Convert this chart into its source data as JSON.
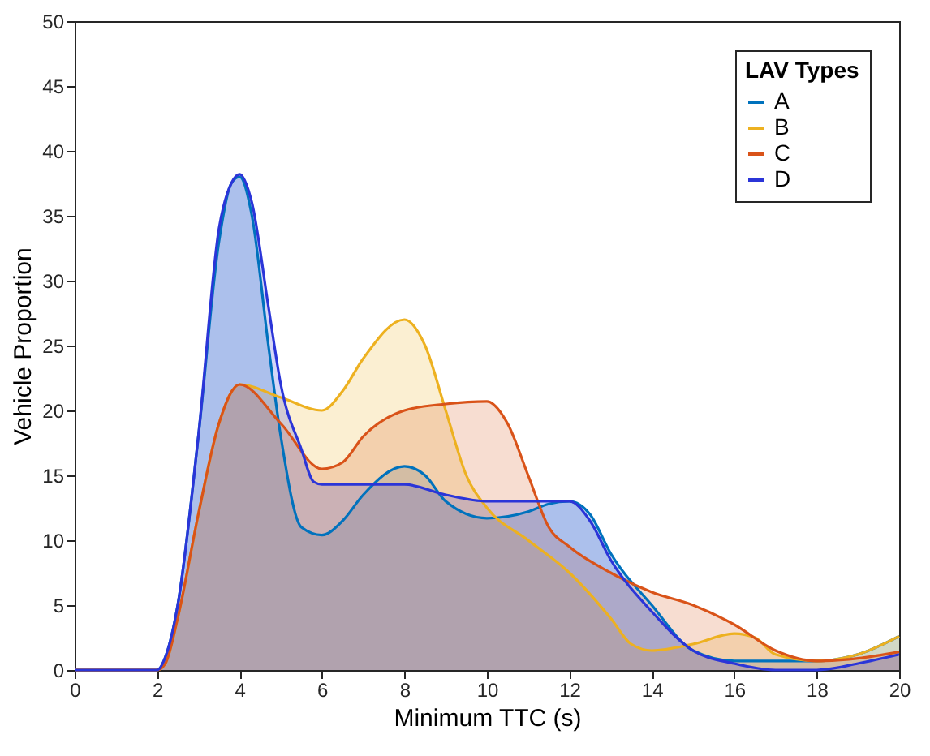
{
  "chart_data": {
    "type": "area",
    "xlabel": "Minimum TTC (s)",
    "ylabel": "Vehicle Proportion",
    "legend_title": "LAV Types",
    "legend": "top right",
    "grid": false,
    "xlim": [
      0,
      20
    ],
    "ylim": [
      0,
      50
    ],
    "xticks": [
      0,
      2,
      4,
      6,
      8,
      10,
      12,
      14,
      16,
      18,
      20
    ],
    "yticks": [
      0,
      5,
      10,
      15,
      20,
      25,
      30,
      35,
      40,
      45,
      50
    ],
    "series": [
      {
        "name": "A",
        "color": "#0072bd",
        "x": [
          0,
          2,
          2.2,
          2.5,
          3,
          3.5,
          3.8,
          4,
          4.3,
          4.7,
          5,
          5.5,
          6,
          6.5,
          7,
          8,
          8.5,
          9,
          10,
          11,
          11.5,
          12,
          12.5,
          13,
          14,
          15,
          16,
          17,
          18,
          19,
          20
        ],
        "values": [
          0,
          0,
          1,
          5,
          18,
          33,
          37.5,
          38,
          35,
          25,
          18,
          11,
          10.4,
          11.5,
          13.5,
          15.7,
          15,
          13,
          11.7,
          12.2,
          12.8,
          13,
          12,
          9,
          5,
          1.5,
          0.7,
          0.7,
          0.7,
          1.2,
          2.6
        ]
      },
      {
        "name": "B",
        "color": "#edb120",
        "x": [
          0,
          2,
          2.2,
          2.5,
          3,
          3.5,
          4,
          5,
          6,
          6.5,
          7,
          8,
          8.5,
          9,
          9.5,
          10,
          11,
          12,
          13,
          13.5,
          14,
          15,
          16,
          16.5,
          17,
          18,
          19,
          20
        ],
        "values": [
          0,
          0,
          0.5,
          4,
          12,
          19,
          22,
          21,
          20,
          21.5,
          24,
          27,
          25,
          20,
          15,
          12.5,
          10,
          7.5,
          4,
          2,
          1.5,
          2,
          2.8,
          2.5,
          1.2,
          0.7,
          1.2,
          2.6
        ]
      },
      {
        "name": "C",
        "color": "#d95319",
        "x": [
          0,
          2,
          2.2,
          2.5,
          3,
          3.5,
          4,
          5,
          6,
          6.5,
          7,
          8,
          9,
          10,
          10.5,
          11,
          11.5,
          12,
          13,
          14,
          15,
          16,
          17,
          18,
          19,
          20
        ],
        "values": [
          0,
          0,
          0.5,
          4,
          12,
          19,
          22,
          19,
          15.5,
          16,
          18,
          20,
          20.5,
          20.7,
          19,
          15,
          11,
          9.5,
          7.5,
          6,
          5,
          3.5,
          1.5,
          0.7,
          0.9,
          1.4
        ]
      },
      {
        "name": "D",
        "color": "#2b35d8",
        "x": [
          0,
          2,
          2.2,
          2.5,
          3,
          3.5,
          3.8,
          4,
          4.3,
          4.7,
          5,
          5.5,
          5.8,
          6,
          7,
          8,
          9,
          10,
          11,
          12,
          12.5,
          13,
          14,
          15,
          16,
          17,
          18,
          19,
          20
        ],
        "values": [
          0,
          0,
          1,
          5,
          18,
          34,
          37.5,
          38.2,
          36,
          28,
          22,
          17,
          14.5,
          14.3,
          14.3,
          14.3,
          13.5,
          13,
          13,
          13,
          11.5,
          8.5,
          4.5,
          1.5,
          0.5,
          0,
          0,
          0.5,
          1.2
        ]
      }
    ]
  }
}
